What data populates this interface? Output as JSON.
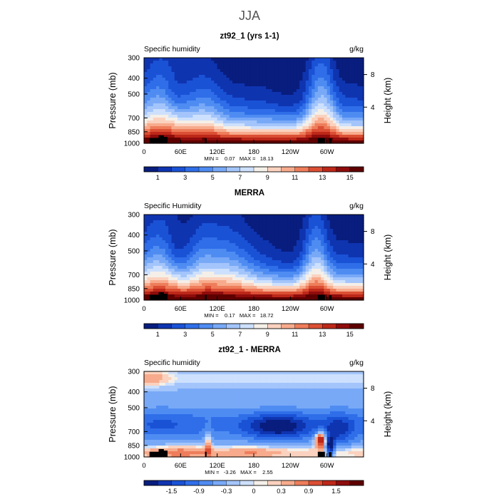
{
  "figure_title": "JJA",
  "chart_data": [
    {
      "type": "heatmap",
      "title": "zt92_1 (yrs 1-1)",
      "variable_label": "Specific humidity",
      "units": "g/kg",
      "ylabel": "Pressure (mb)",
      "ylabel_right": "Height (km)",
      "x_ticks": [
        "0",
        "60E",
        "120E",
        "180",
        "120W",
        "60W"
      ],
      "x_tick_values": [
        0,
        60,
        120,
        180,
        240,
        300
      ],
      "xlim": [
        0,
        360
      ],
      "y_ticks": [
        "300",
        "400",
        "500",
        "700",
        "850",
        "1000"
      ],
      "y_tick_values": [
        300,
        400,
        500,
        700,
        850,
        1000
      ],
      "ylim": [
        1000,
        300
      ],
      "height_ticks": [
        "8",
        "4"
      ],
      "height_tick_values": [
        8,
        4
      ],
      "min_max_text": "MIN =    0.07   MAX =   18.13",
      "min": 0.07,
      "max": 18.13,
      "colorbar_labels": [
        "1",
        "3",
        "5",
        "7",
        "9",
        "11",
        "13",
        "15"
      ],
      "colorbar_levels": [
        1,
        2,
        3,
        4,
        5,
        6,
        7,
        8,
        9,
        10,
        11,
        12,
        13,
        14,
        15
      ],
      "vmin": 0,
      "vmax": 16,
      "field": "model"
    },
    {
      "type": "heatmap",
      "title": "MERRA",
      "variable_label": "Specific Humidity",
      "units": "g/kg",
      "ylabel": "Pressure (mb)",
      "ylabel_right": "Height (km)",
      "x_ticks": [
        "0",
        "60E",
        "120E",
        "180",
        "120W",
        "60W"
      ],
      "x_tick_values": [
        0,
        60,
        120,
        180,
        240,
        300
      ],
      "xlim": [
        0,
        360
      ],
      "y_ticks": [
        "300",
        "400",
        "500",
        "700",
        "850",
        "1000"
      ],
      "y_tick_values": [
        300,
        400,
        500,
        700,
        850,
        1000
      ],
      "ylim": [
        1000,
        300
      ],
      "height_ticks": [
        "8",
        "4"
      ],
      "height_tick_values": [
        8,
        4
      ],
      "min_max_text": "MIN =    0.17   MAX =   18.72",
      "min": 0.17,
      "max": 18.72,
      "colorbar_labels": [
        "1",
        "3",
        "5",
        "7",
        "9",
        "11",
        "13",
        "15"
      ],
      "colorbar_levels": [
        1,
        2,
        3,
        4,
        5,
        6,
        7,
        8,
        9,
        10,
        11,
        12,
        13,
        14,
        15
      ],
      "vmin": 0,
      "vmax": 16,
      "field": "obs"
    },
    {
      "type": "heatmap",
      "title": "zt92_1 - MERRA",
      "variable_label": "Specific humidity",
      "units": "g/kg",
      "ylabel": "Pressure (mb)",
      "ylabel_right": "Height (km)",
      "x_ticks": [
        "0",
        "60E",
        "120E",
        "180",
        "120W",
        "60W"
      ],
      "x_tick_values": [
        0,
        60,
        120,
        180,
        240,
        300
      ],
      "xlim": [
        0,
        360
      ],
      "y_ticks": [
        "300",
        "400",
        "500",
        "700",
        "850",
        "1000"
      ],
      "y_tick_values": [
        300,
        400,
        500,
        700,
        850,
        1000
      ],
      "ylim": [
        1000,
        300
      ],
      "height_ticks": [
        "8",
        "4"
      ],
      "height_tick_values": [
        8,
        4
      ],
      "min_max_text": "MIN =   -3.26   MAX =    2.55",
      "min": -3.26,
      "max": 2.55,
      "colorbar_labels": [
        "-1.5",
        "-0.9",
        "-0.3",
        "0",
        "0.3",
        "0.9",
        "1.5"
      ],
      "colorbar_levels": [
        -1.8,
        -1.5,
        -1.2,
        -0.9,
        -0.6,
        -0.3,
        -0.1,
        0,
        0.1,
        0.3,
        0.6,
        0.9,
        1.2,
        1.5,
        1.8
      ],
      "vmin": -2,
      "vmax": 2,
      "field": "diff"
    }
  ],
  "colors": {
    "palette": [
      "#081d7e",
      "#0f34b0",
      "#1a52d6",
      "#2f6ee8",
      "#4f8cf2",
      "#78a9f7",
      "#a3c5fb",
      "#cde0fd",
      "#f4efe8",
      "#fbd2bf",
      "#f7ab8c",
      "#ee7d5b",
      "#db4f34",
      "#bd2819",
      "#8f0c0c",
      "#5e0000"
    ],
    "topography": "#000000",
    "frame": "#000000"
  }
}
